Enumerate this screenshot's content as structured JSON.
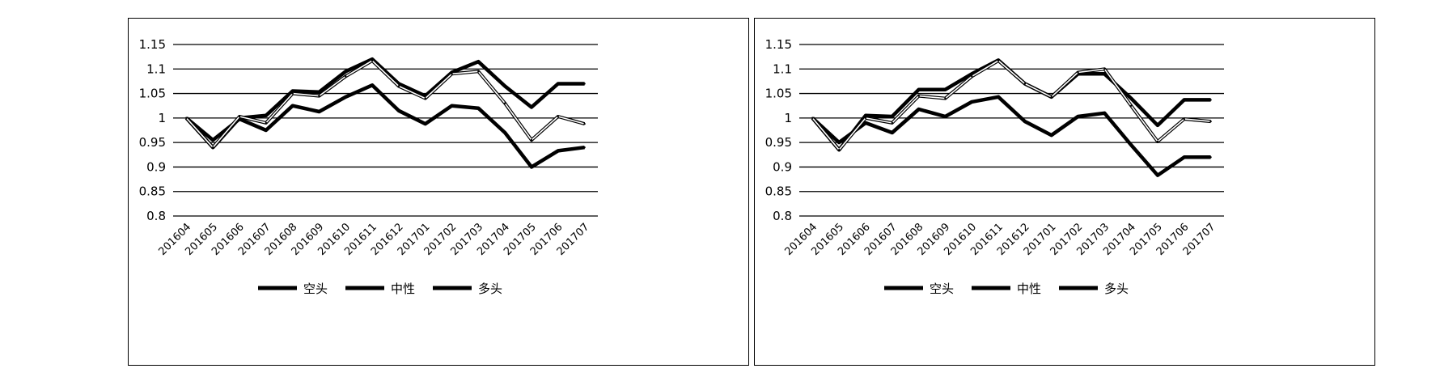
{
  "chart_data": [
    {
      "type": "line",
      "categories": [
        "201604",
        "201605",
        "201606",
        "201607",
        "201608",
        "201609",
        "201610",
        "201611",
        "201612",
        "201701",
        "201702",
        "201703",
        "201704",
        "201705",
        "201706",
        "201707"
      ],
      "ylim": [
        0.8,
        1.15
      ],
      "yticks": [
        "1.15",
        "1.1",
        "1.05",
        "1",
        "0.95",
        "0.9",
        "0.85",
        "0.8"
      ],
      "grid": true,
      "legend_position": "bottom",
      "series": [
        {
          "name": "空头",
          "color": "#000000",
          "style": "thick",
          "values": [
            1.0,
            0.955,
            0.998,
            0.975,
            1.025,
            1.013,
            1.043,
            1.067,
            1.015,
            0.988,
            1.025,
            1.02,
            0.97,
            0.9,
            0.933,
            0.94
          ]
        },
        {
          "name": "中性",
          "color": "#000000",
          "style": "thick",
          "values": [
            1.0,
            0.94,
            1.0,
            1.005,
            1.055,
            1.053,
            1.095,
            1.12,
            1.07,
            1.045,
            1.093,
            1.115,
            1.065,
            1.022,
            1.07,
            1.07
          ]
        },
        {
          "name": "多头",
          "color": "#000000",
          "style": "hollow",
          "values": [
            1.0,
            0.94,
            1.003,
            0.99,
            1.05,
            1.045,
            1.085,
            1.117,
            1.065,
            1.04,
            1.09,
            1.095,
            1.03,
            0.955,
            1.003,
            0.988
          ]
        }
      ]
    },
    {
      "type": "line",
      "categories": [
        "201604",
        "201605",
        "201606",
        "201607",
        "201608",
        "201609",
        "201610",
        "201611",
        "201612",
        "201701",
        "201702",
        "201703",
        "201704",
        "201705",
        "201706",
        "201707"
      ],
      "ylim": [
        0.8,
        1.15
      ],
      "yticks": [
        "1.15",
        "1.1",
        "1.05",
        "1",
        "0.95",
        "0.9",
        "0.85",
        "0.8"
      ],
      "grid": true,
      "legend_position": "bottom",
      "series": [
        {
          "name": "空头",
          "color": "#000000",
          "style": "thick",
          "values": [
            1.0,
            0.95,
            0.99,
            0.97,
            1.018,
            1.003,
            1.033,
            1.043,
            0.993,
            0.965,
            1.003,
            1.01,
            0.945,
            0.883,
            0.92,
            0.92
          ]
        },
        {
          "name": "中性",
          "color": "#000000",
          "style": "thick",
          "values": [
            1.0,
            0.935,
            1.005,
            1.003,
            1.058,
            1.058,
            1.09,
            1.118,
            1.07,
            1.043,
            1.09,
            1.09,
            1.04,
            0.985,
            1.037,
            1.037
          ]
        },
        {
          "name": "多头",
          "color": "#000000",
          "style": "hollow",
          "values": [
            1.0,
            0.935,
            1.0,
            0.99,
            1.045,
            1.04,
            1.085,
            1.117,
            1.07,
            1.043,
            1.093,
            1.1,
            1.025,
            0.952,
            0.998,
            0.993
          ]
        }
      ]
    }
  ]
}
